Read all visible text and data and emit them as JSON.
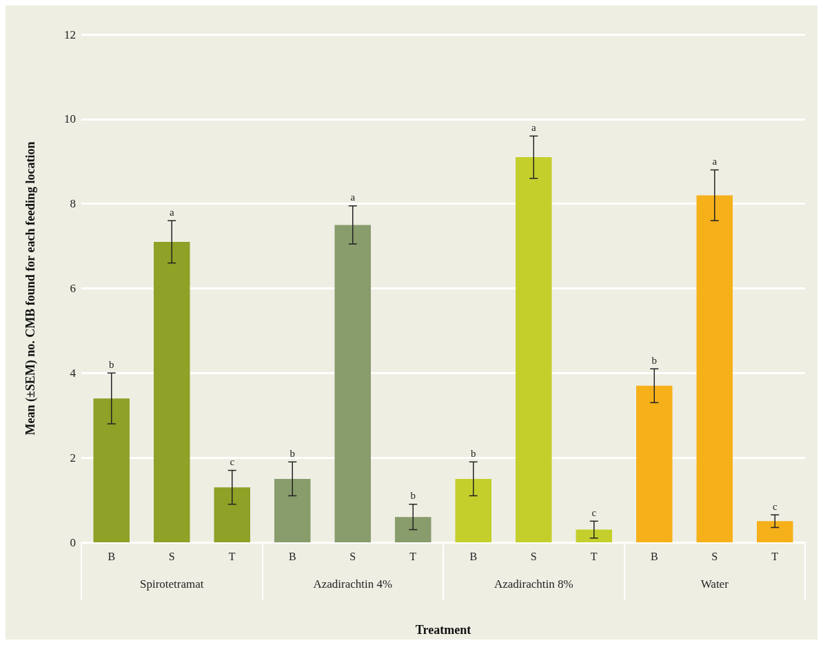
{
  "chart_data": {
    "type": "bar",
    "xlabel": "Treatment",
    "ylabel": "Mean (±SEM) no. CMB found for each feeding location",
    "categories": [
      "B",
      "S",
      "T",
      "B",
      "S",
      "T",
      "B",
      "S",
      "T",
      "B",
      "S",
      "T"
    ],
    "values": [
      3.4,
      7.1,
      1.3,
      1.5,
      7.5,
      0.6,
      1.5,
      9.1,
      0.3,
      3.7,
      8.2,
      0.5
    ],
    "errors": [
      0.6,
      0.5,
      0.4,
      0.4,
      0.45,
      0.3,
      0.4,
      0.5,
      0.2,
      0.4,
      0.6,
      0.15
    ],
    "colors": [
      "#8fa126",
      "#8fa126",
      "#8fa126",
      "#889c6c",
      "#889c6c",
      "#889c6c",
      "#c4cf2c",
      "#c4cf2c",
      "#c4cf2c",
      "#f6b01a",
      "#f6b01a",
      "#f6b01a"
    ],
    "value_labels": [
      "b",
      "a",
      "c",
      "b",
      "a",
      "b",
      "b",
      "a",
      "c",
      "b",
      "a",
      "c"
    ],
    "annotations": [
      "Spirotetramat",
      "Azadirachtin 4%",
      "Azadirachtin 8%",
      "Water"
    ],
    "ylim": [
      0,
      12
    ],
    "yticks": [
      0,
      2,
      4,
      6,
      8,
      10,
      12
    ],
    "grid": "y"
  }
}
